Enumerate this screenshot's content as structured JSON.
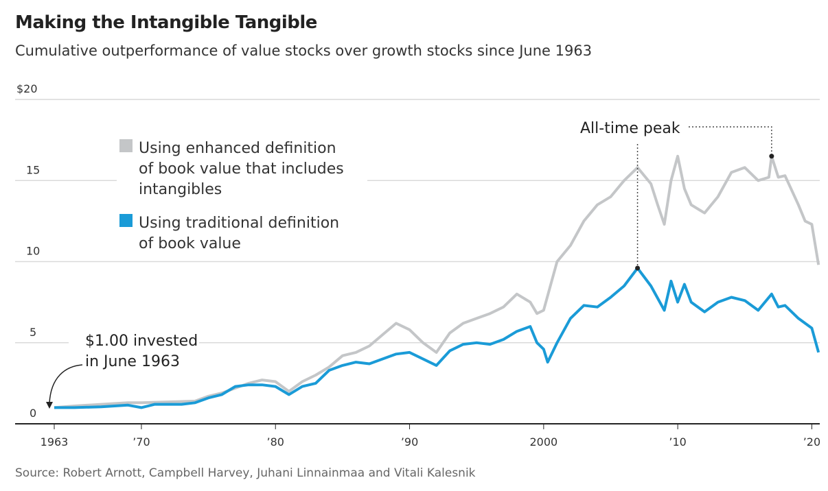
{
  "title": "Making the Intangible Tangible",
  "subtitle": "Cumulative outperformance of value stocks over growth stocks since June 1963",
  "source": "Source: Robert Arnott, Campbell Harvey, Juhani Linnainmaa and Vitali Kalesnik",
  "chart_data": {
    "type": "line",
    "title": "Making the Intangible Tangible",
    "ylim": [
      0,
      20
    ],
    "xlim": [
      1963.5,
      2020.5
    ],
    "y_ticks": [
      {
        "v": 0,
        "label": "0"
      },
      {
        "v": 5,
        "label": "5"
      },
      {
        "v": 10,
        "label": "10"
      },
      {
        "v": 15,
        "label": "15"
      },
      {
        "v": 20,
        "label": "$20"
      }
    ],
    "x_ticks": [
      {
        "v": 1963.5,
        "label": "1963"
      },
      {
        "v": 1970,
        "label": "’70"
      },
      {
        "v": 1980,
        "label": "’80"
      },
      {
        "v": 1990,
        "label": "’90"
      },
      {
        "v": 2000,
        "label": "2000"
      },
      {
        "v": 2010,
        "label": "’10"
      },
      {
        "v": 2020,
        "label": "’20"
      }
    ],
    "grid": true,
    "legend_placement": "top-left",
    "series": [
      {
        "name": "Using enhanced definition of book value that includes intangibles",
        "legend_lines": [
          "Using enhanced definition",
          "of book value that includes",
          "intangibles"
        ],
        "color": "#c4c6c8",
        "x": [
          1963.5,
          1965,
          1967,
          1969,
          1970,
          1972,
          1974,
          1975,
          1976,
          1977,
          1978,
          1979,
          1980,
          1981,
          1982,
          1983,
          1984,
          1985,
          1986,
          1987,
          1988,
          1989,
          1990,
          1991,
          1992,
          1993,
          1994,
          1995,
          1996,
          1997,
          1998,
          1999,
          1999.5,
          2000,
          2000.5,
          2001,
          2002,
          2003,
          2004,
          2005,
          2006,
          2007,
          2008,
          2008.5,
          2009,
          2009.5,
          2010,
          2010.5,
          2011,
          2012,
          2013,
          2014,
          2015,
          2016,
          2016.8,
          2017,
          2017.5,
          2018,
          2019,
          2019.5,
          2020,
          2020.5
        ],
        "y": [
          1.0,
          1.1,
          1.2,
          1.3,
          1.3,
          1.35,
          1.4,
          1.7,
          1.9,
          2.2,
          2.5,
          2.7,
          2.6,
          2.0,
          2.6,
          3.0,
          3.5,
          4.2,
          4.4,
          4.8,
          5.5,
          6.2,
          5.8,
          5.0,
          4.4,
          5.6,
          6.2,
          6.5,
          6.8,
          7.2,
          8.0,
          7.5,
          6.8,
          7.0,
          8.5,
          10.0,
          11.0,
          12.5,
          13.5,
          14.0,
          15.0,
          15.8,
          14.8,
          13.5,
          12.3,
          15.0,
          16.5,
          14.5,
          13.5,
          13.0,
          14.0,
          15.5,
          15.8,
          15.0,
          15.2,
          16.5,
          15.2,
          15.3,
          13.5,
          12.5,
          12.3,
          9.8
        ]
      },
      {
        "name": "Using traditional definition of book value",
        "legend_lines": [
          "Using traditional definition",
          "of book value"
        ],
        "color": "#1a9bd7",
        "x": [
          1963.5,
          1965,
          1967,
          1969,
          1970,
          1971,
          1973,
          1974,
          1975,
          1976,
          1977,
          1978,
          1979,
          1980,
          1981,
          1982,
          1983,
          1984,
          1985,
          1986,
          1987,
          1988,
          1989,
          1990,
          1991,
          1992,
          1993,
          1994,
          1995,
          1996,
          1997,
          1998,
          1999,
          1999.5,
          2000,
          2000.3,
          2001,
          2002,
          2003,
          2004,
          2005,
          2006,
          2007,
          2008,
          2009,
          2009.5,
          2010,
          2010.5,
          2011,
          2012,
          2013,
          2014,
          2015,
          2016,
          2017,
          2017.5,
          2018,
          2019,
          2020,
          2020.5
        ],
        "y": [
          1.0,
          1.0,
          1.05,
          1.15,
          1.0,
          1.2,
          1.2,
          1.3,
          1.6,
          1.8,
          2.3,
          2.4,
          2.4,
          2.3,
          1.8,
          2.3,
          2.5,
          3.3,
          3.6,
          3.8,
          3.7,
          4.0,
          4.3,
          4.4,
          4.0,
          3.6,
          4.5,
          4.9,
          5.0,
          4.9,
          5.2,
          5.7,
          6.0,
          5.0,
          4.6,
          3.8,
          5.0,
          6.5,
          7.3,
          7.2,
          7.8,
          8.5,
          9.6,
          8.5,
          7.0,
          8.8,
          7.5,
          8.6,
          7.5,
          6.9,
          7.5,
          7.8,
          7.6,
          7.0,
          8.0,
          7.2,
          7.3,
          6.5,
          5.9,
          4.4
        ]
      }
    ],
    "annotations": {
      "start": [
        "$1.00 invested",
        "in June 1963"
      ],
      "peak": "All-time peak",
      "peak_points": [
        {
          "x": 2007,
          "y": 9.6
        },
        {
          "x": 2017,
          "y": 16.5
        }
      ]
    }
  }
}
